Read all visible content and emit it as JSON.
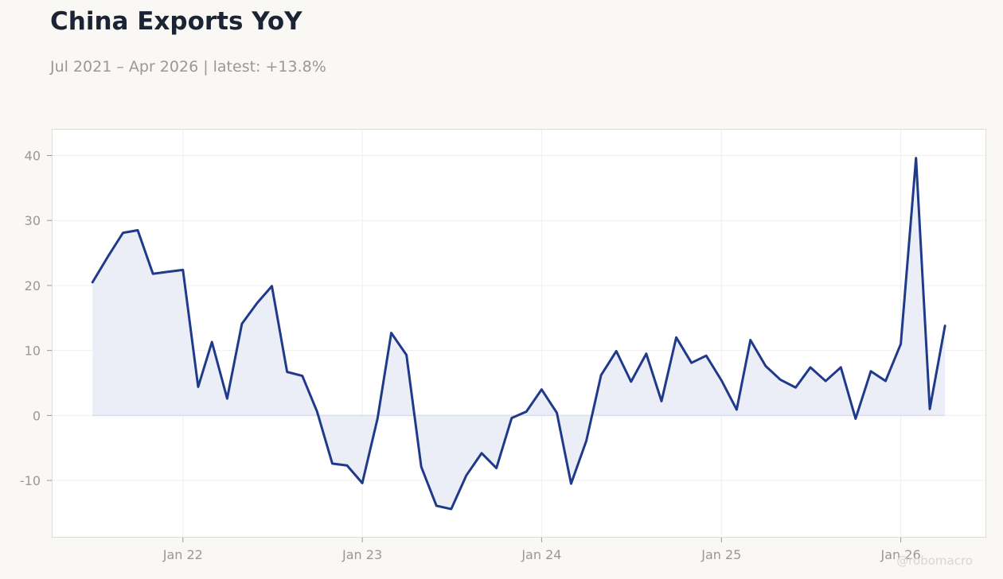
{
  "header": {
    "title": "China Exports YoY",
    "subtitle": "Jul 2021 – Apr 2026 | latest: +13.8%"
  },
  "watermark": "@robomacro",
  "colors": {
    "line": "#1f3a8a",
    "fill": "#eceef7",
    "grid": "#efefee",
    "frame": "#dedcd5",
    "tick_text": "#9a9893"
  },
  "chart_data": {
    "type": "area",
    "x_start": "2021-07",
    "x": [
      "2021-07",
      "2021-08",
      "2021-09",
      "2021-10",
      "2021-11",
      "2021-12",
      "2022-01",
      "2022-02",
      "2022-03",
      "2022-04",
      "2022-05",
      "2022-06",
      "2022-07",
      "2022-08",
      "2022-09",
      "2022-10",
      "2022-11",
      "2022-12",
      "2023-01",
      "2023-02",
      "2023-03",
      "2023-04",
      "2023-05",
      "2023-06",
      "2023-07",
      "2023-08",
      "2023-09",
      "2023-10",
      "2023-11",
      "2023-12",
      "2024-01",
      "2024-02",
      "2024-03",
      "2024-04",
      "2024-05",
      "2024-06",
      "2024-07",
      "2024-08",
      "2024-09",
      "2024-10",
      "2024-11",
      "2024-12",
      "2025-01",
      "2025-02",
      "2025-03",
      "2025-04",
      "2025-05",
      "2025-06",
      "2025-07",
      "2025-08",
      "2025-09",
      "2025-10",
      "2025-11",
      "2025-12",
      "2026-01",
      "2026-02",
      "2026-03",
      "2026-04"
    ],
    "values": [
      20.5,
      24.4,
      28.1,
      28.5,
      21.8,
      22.1,
      22.4,
      4.4,
      11.3,
      2.6,
      14.1,
      17.3,
      19.9,
      6.7,
      6.1,
      0.6,
      -7.4,
      -7.7,
      -10.4,
      -0.5,
      12.7,
      9.3,
      -7.9,
      -13.9,
      -14.4,
      -9.2,
      -5.8,
      -8.1,
      -0.4,
      0.6,
      4.0,
      0.4,
      -10.5,
      -3.9,
      6.2,
      9.9,
      5.2,
      9.5,
      2.2,
      12.0,
      8.1,
      9.2,
      5.4,
      0.9,
      11.6,
      7.6,
      5.5,
      4.3,
      7.4,
      5.3,
      7.4,
      -0.5,
      6.8,
      5.3,
      11.0,
      39.6,
      1.0,
      13.8
    ],
    "x_ticks": [
      {
        "date": "2022-01",
        "label": "Jan 22"
      },
      {
        "date": "2023-01",
        "label": "Jan 23"
      },
      {
        "date": "2024-01",
        "label": "Jan 24"
      },
      {
        "date": "2025-01",
        "label": "Jan 25"
      },
      {
        "date": "2026-01",
        "label": "Jan 26"
      }
    ],
    "y_ticks": [
      -10,
      0,
      10,
      20,
      30,
      40
    ],
    "ylim": [
      -18.8,
      44.1
    ],
    "xlim": [
      "2021-04-09",
      "2026-06-24"
    ],
    "title": "China Exports YoY",
    "xlabel": "",
    "ylabel": "",
    "grid": true,
    "legend": "none"
  }
}
